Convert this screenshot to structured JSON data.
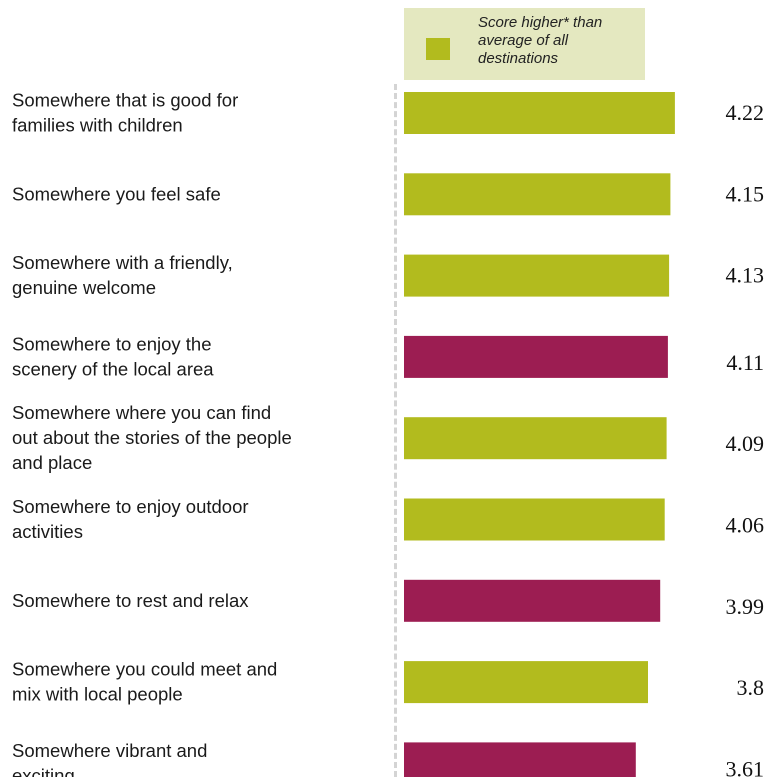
{
  "chart_data": {
    "type": "bar",
    "orientation": "horizontal",
    "legend": {
      "label": "Score higher* than average of all destinations",
      "color": "#b2bb1e",
      "placement": "top-right"
    },
    "colors": {
      "higher": "#b2bb1e",
      "other": "#9c1d52"
    },
    "categories": [
      [
        "Somewhere that is good for",
        "families with children"
      ],
      [
        "Somewhere you feel safe"
      ],
      [
        "Somewhere with a friendly,",
        "genuine welcome"
      ],
      [
        "Somewhere to enjoy the",
        "scenery of the local area"
      ],
      [
        "Somewhere where you can find",
        "out about the stories of the people",
        "and place"
      ],
      [
        "Somewhere to enjoy outdoor",
        "activities"
      ],
      [
        "Somewhere to rest and relax"
      ],
      [
        "Somewhere you could meet and",
        "mix with local people"
      ],
      [
        "Somewhere vibrant and",
        "exciting"
      ]
    ],
    "values": [
      4.22,
      4.15,
      4.13,
      4.11,
      4.09,
      4.06,
      3.99,
      3.8,
      3.61
    ],
    "value_labels": [
      "4.22",
      "4.15",
      "4.13",
      "4.11",
      "4.09",
      "4.06",
      "3.99",
      "3.8",
      "3.61"
    ],
    "higher_than_average": [
      true,
      true,
      true,
      false,
      true,
      true,
      false,
      true,
      false
    ],
    "grid": false
  }
}
